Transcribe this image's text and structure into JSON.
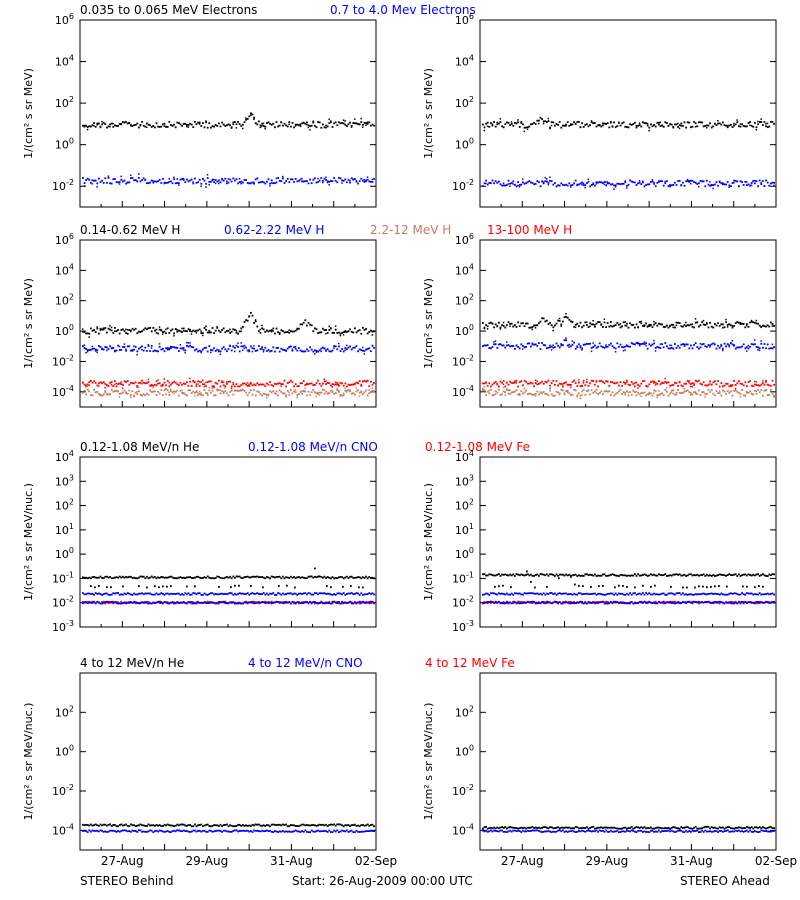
{
  "colors": {
    "black": "#000000",
    "blue": "#0000ff",
    "brown": "#c87a5a",
    "red": "#ff0000",
    "orange": "#e07a40"
  },
  "footer": {
    "left": "STEREO Behind",
    "center": "Start: 26-Aug-2009 00:00 UTC",
    "right": "STEREO Ahead"
  },
  "chart_data": [
    {
      "type": "scatter",
      "row": 1,
      "titles": [
        {
          "text": "0.035 to 0.065 MeV Electrons",
          "color": "#000000"
        },
        {
          "text": "0.7 to 4.0 Mev Electrons",
          "color": "#0000ff"
        }
      ],
      "ylabel": "1/(cm² s sr MeV)",
      "ylim_log10": [
        -3,
        6
      ],
      "yticks": [
        {
          "exp": -2,
          "text": "10-2"
        },
        {
          "exp": 0,
          "text": "100"
        },
        {
          "exp": 2,
          "text": "102"
        },
        {
          "exp": 4,
          "text": "104"
        },
        {
          "exp": 6,
          "text": "106"
        }
      ],
      "xlim_days": [
        0,
        7.0
      ],
      "xticks": [
        {
          "day": 1,
          "label": "27-Aug"
        },
        {
          "day": 3,
          "label": "29-Aug"
        },
        {
          "day": 5,
          "label": "31-Aug"
        },
        {
          "day": 7,
          "label": "02-Sep"
        }
      ],
      "panels": [
        {
          "spacecraft": "STEREO Behind",
          "series": [
            {
              "color": "#000000",
              "level": 10,
              "spikes": [
                {
                  "day": 4.0,
                  "value": 30
                }
              ]
            },
            {
              "color": "#0000ff",
              "level": 0.02,
              "spikes": []
            }
          ]
        },
        {
          "spacecraft": "STEREO Ahead",
          "series": [
            {
              "color": "#000000",
              "level": 10,
              "spikes": [
                {
                  "day": 1.4,
                  "value": 20
                }
              ]
            },
            {
              "color": "#0000ff",
              "level": 0.015,
              "spikes": []
            }
          ]
        }
      ]
    },
    {
      "type": "scatter",
      "row": 2,
      "titles": [
        {
          "text": "0.14-0.62 MeV H",
          "color": "#000000"
        },
        {
          "text": "0.62-2.22 MeV H",
          "color": "#0000ff"
        },
        {
          "text": "2.2-12 MeV H",
          "color": "#c87a5a"
        },
        {
          "text": "13-100 MeV H",
          "color": "#ff0000"
        }
      ],
      "ylabel": "1/(cm² s sr MeV)",
      "ylim_log10": [
        -5,
        6
      ],
      "yticks": [
        {
          "exp": -4,
          "text": "10-4"
        },
        {
          "exp": -2,
          "text": "10-2"
        },
        {
          "exp": 0,
          "text": "100"
        },
        {
          "exp": 2,
          "text": "102"
        },
        {
          "exp": 4,
          "text": "104"
        },
        {
          "exp": 6,
          "text": "106"
        }
      ],
      "xlim_days": [
        0,
        7.0
      ],
      "xticks": [
        {
          "day": 1,
          "label": "27-Aug"
        },
        {
          "day": 3,
          "label": "29-Aug"
        },
        {
          "day": 5,
          "label": "31-Aug"
        },
        {
          "day": 7,
          "label": "02-Sep"
        }
      ],
      "panels": [
        {
          "spacecraft": "STEREO Behind",
          "series": [
            {
              "color": "#000000",
              "level": 1.2,
              "spikes": [
                {
                  "day": 4.0,
                  "value": 15
                },
                {
                  "day": 5.3,
                  "value": 5
                }
              ]
            },
            {
              "color": "#0000ff",
              "level": 0.08,
              "spikes": []
            },
            {
              "color": "#ff0000",
              "level": 0.0004,
              "spikes": []
            },
            {
              "color": "#c87a5a",
              "level": 0.0001,
              "spikes": []
            }
          ]
        },
        {
          "spacecraft": "STEREO Ahead",
          "series": [
            {
              "color": "#000000",
              "level": 3,
              "spikes": [
                {
                  "day": 1.5,
                  "value": 6
                },
                {
                  "day": 2.0,
                  "value": 7
                }
              ]
            },
            {
              "color": "#0000ff",
              "level": 0.12,
              "spikes": [
                {
                  "day": 2.0,
                  "value": 0.2
                }
              ]
            },
            {
              "color": "#ff0000",
              "level": 0.0004,
              "spikes": []
            },
            {
              "color": "#c87a5a",
              "level": 0.0001,
              "spikes": []
            }
          ]
        }
      ]
    },
    {
      "type": "scatter",
      "row": 3,
      "titles": [
        {
          "text": "0.12-1.08 MeV/n He",
          "color": "#000000"
        },
        {
          "text": "0.12-1.08 MeV/n CNO",
          "color": "#0000ff"
        },
        {
          "text": "0.12-1.08 MeV Fe",
          "color": "#ff0000"
        }
      ],
      "ylabel": "1/(cm² s sr MeV/nuc.)",
      "ylim_log10": [
        -3,
        4
      ],
      "yticks": [
        {
          "exp": -3,
          "text": "10-3"
        },
        {
          "exp": -2,
          "text": "10-2"
        },
        {
          "exp": -1,
          "text": "10-1"
        },
        {
          "exp": 0,
          "text": "100"
        },
        {
          "exp": 1,
          "text": "101"
        },
        {
          "exp": 2,
          "text": "102"
        },
        {
          "exp": 3,
          "text": "103"
        },
        {
          "exp": 4,
          "text": "104"
        }
      ],
      "xlim_days": [
        0,
        7.0
      ],
      "xticks": [
        {
          "day": 1,
          "label": "27-Aug"
        },
        {
          "day": 3,
          "label": "29-Aug"
        },
        {
          "day": 5,
          "label": "31-Aug"
        },
        {
          "day": 7,
          "label": "02-Sep"
        }
      ],
      "panels": [
        {
          "spacecraft": "STEREO Behind",
          "series": [
            {
              "color": "#000000",
              "level": 0.05,
              "spikes": [
                {
                  "day": 5.5,
                  "value": 0.4
                }
              ]
            },
            {
              "color": "#000000",
              "level": 0.12,
              "spikes": []
            },
            {
              "color": "#0000ff",
              "level": 0.025,
              "spikes": []
            },
            {
              "color": "#ff0000",
              "level": 0.011,
              "spikes": []
            },
            {
              "color": "#0000ff",
              "level": 0.011,
              "spikes": []
            }
          ]
        },
        {
          "spacecraft": "STEREO Ahead",
          "series": [
            {
              "color": "#000000",
              "level": 0.05,
              "spikes": [
                {
                  "day": 1.0,
                  "value": 0.5
                },
                {
                  "day": 2.0,
                  "value": 0.4
                }
              ]
            },
            {
              "color": "#000000",
              "level": 0.15,
              "spikes": []
            },
            {
              "color": "#0000ff",
              "level": 0.025,
              "spikes": []
            },
            {
              "color": "#ff0000",
              "level": 0.011,
              "spikes": []
            },
            {
              "color": "#0000ff",
              "level": 0.011,
              "spikes": []
            }
          ]
        }
      ]
    },
    {
      "type": "scatter",
      "row": 4,
      "titles": [
        {
          "text": "4 to 12 MeV/n He",
          "color": "#000000"
        },
        {
          "text": "4 to 12 MeV/n CNO",
          "color": "#0000ff"
        },
        {
          "text": "4 to 12 MeV Fe",
          "color": "#ff0000"
        }
      ],
      "ylabel": "1/(cm² s sr MeV/nuc.)",
      "ylim_log10": [
        -5,
        4
      ],
      "yticks": [
        {
          "exp": -4,
          "text": "10-4"
        },
        {
          "exp": -2,
          "text": "10-2"
        },
        {
          "exp": 0,
          "text": "100"
        },
        {
          "exp": 2,
          "text": "102"
        }
      ],
      "xlim_days": [
        0,
        7.0
      ],
      "xticks": [
        {
          "day": 1,
          "label": "27-Aug"
        },
        {
          "day": 3,
          "label": "29-Aug"
        },
        {
          "day": 5,
          "label": "31-Aug"
        },
        {
          "day": 7,
          "label": "02-Sep"
        }
      ],
      "panels": [
        {
          "spacecraft": "STEREO Behind",
          "series": [
            {
              "color": "#0000ff",
              "level": 0.0001,
              "spikes": []
            },
            {
              "color": "#000000",
              "level": 0.0002,
              "spikes": []
            }
          ]
        },
        {
          "spacecraft": "STEREO Ahead",
          "series": [
            {
              "color": "#0000ff",
              "level": 0.0001,
              "spikes": []
            },
            {
              "color": "#000000",
              "level": 0.00015,
              "spikes": []
            }
          ]
        }
      ]
    }
  ]
}
